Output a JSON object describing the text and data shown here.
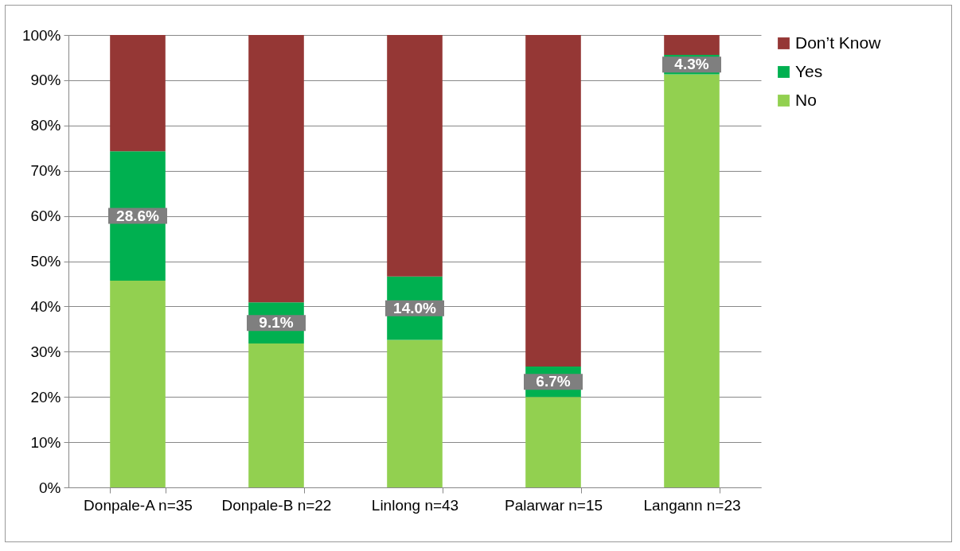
{
  "chart_data": {
    "type": "bar",
    "stacked": true,
    "categories": [
      "Donpale-A n=35",
      "Donpale-B n=22",
      "Linlong n=43",
      "Palarwar n=15",
      "Langann n=23"
    ],
    "series": [
      {
        "name": "No",
        "color": "#92d050",
        "values": [
          45.7,
          31.8,
          32.6,
          20.0,
          91.3
        ]
      },
      {
        "name": "Yes",
        "color": "#00b050",
        "values": [
          28.6,
          9.1,
          14.0,
          6.7,
          4.3
        ],
        "value_labels": [
          "28.6%",
          "9.1%",
          "14.0%",
          "6.7%",
          "4.3%"
        ]
      },
      {
        "name": "Don’t Know",
        "color": "#953735",
        "values": [
          25.7,
          59.1,
          53.4,
          73.3,
          4.4
        ]
      }
    ],
    "ylim": [
      0,
      100
    ],
    "yticks": [
      {
        "value": 0,
        "label": "0%"
      },
      {
        "value": 10,
        "label": "10%"
      },
      {
        "value": 20,
        "label": "20%"
      },
      {
        "value": 30,
        "label": "30%"
      },
      {
        "value": 40,
        "label": "40%"
      },
      {
        "value": 50,
        "label": "50%"
      },
      {
        "value": 60,
        "label": "60%"
      },
      {
        "value": 70,
        "label": "70%"
      },
      {
        "value": 80,
        "label": "80%"
      },
      {
        "value": 90,
        "label": "90%"
      },
      {
        "value": 100,
        "label": "100%"
      }
    ],
    "grid": "y",
    "legend": "right"
  }
}
